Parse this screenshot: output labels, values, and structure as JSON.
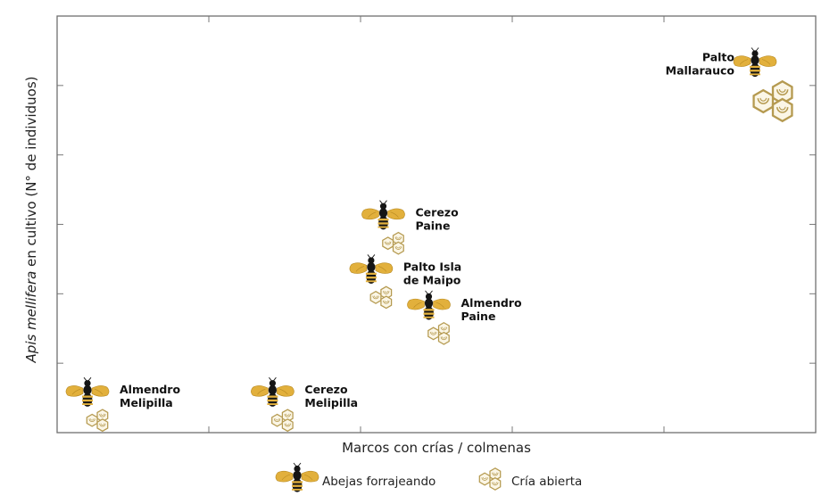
{
  "chart_data": {
    "type": "scatter",
    "title": "",
    "xlabel": "Marcos con crías / colmenas",
    "ylabel_italic": "Apis mellifera",
    "ylabel_rest": " en cultivo (N° de individuos)",
    "xlim": [
      0,
      5
    ],
    "ylim": [
      0,
      6
    ],
    "x_ticks": [
      1,
      2,
      3,
      4
    ],
    "y_ticks": [
      1,
      2,
      3,
      4,
      5
    ],
    "grid": false,
    "points": [
      {
        "label_lines": [
          "Almendro",
          "Melipilla"
        ],
        "x": 0.2,
        "y": 0.55,
        "brood_size": "small"
      },
      {
        "label_lines": [
          "Cerezo",
          "Melipilla"
        ],
        "x": 1.42,
        "y": 0.55,
        "brood_size": "small"
      },
      {
        "label_lines": [
          "Cerezo",
          "Paine"
        ],
        "x": 2.15,
        "y": 3.1,
        "brood_size": "small"
      },
      {
        "label_lines": [
          "Palto Isla",
          "de Maipo"
        ],
        "x": 2.07,
        "y": 2.32,
        "brood_size": "small"
      },
      {
        "label_lines": [
          "Almendro",
          "Paine"
        ],
        "x": 2.45,
        "y": 1.8,
        "brood_size": "small"
      },
      {
        "label_lines": [
          "Palto",
          "Mallarauco"
        ],
        "x": 4.6,
        "y": 5.3,
        "brood_size": "large"
      }
    ],
    "legend": {
      "placement": "bottom-center",
      "items": [
        {
          "name": "Abejas forrajeando",
          "icon": "bee-icon"
        },
        {
          "name": "Cría abierta",
          "icon": "brood-comb-icon"
        }
      ]
    }
  },
  "colors": {
    "axis": "#6f6f6f",
    "gold": "#e2b03c",
    "gold_dark": "#b8963a",
    "body": "#151515",
    "comb_outline": "#b59a50",
    "comb_fill": "#fbf6e6"
  }
}
